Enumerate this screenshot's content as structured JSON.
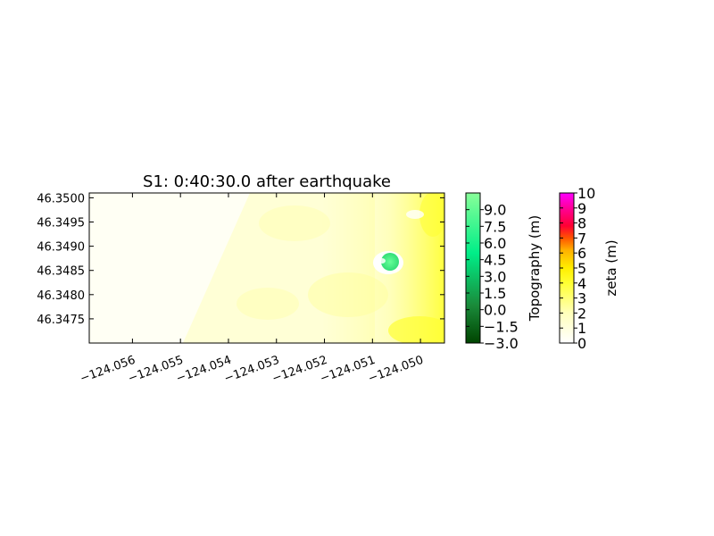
{
  "chart_data": {
    "type": "heatmap",
    "title": "S1: 0:40:30.0 after earthquake",
    "xlabel": "",
    "ylabel": "",
    "xlim": [
      -124.0569,
      -124.0495
    ],
    "ylim": [
      46.347,
      46.3501
    ],
    "x_ticks": [
      {
        "value": -124.056,
        "label": "−124.056"
      },
      {
        "value": -124.055,
        "label": "−124.055"
      },
      {
        "value": -124.054,
        "label": "−124.054"
      },
      {
        "value": -124.053,
        "label": "−124.053"
      },
      {
        "value": -124.052,
        "label": "−124.052"
      },
      {
        "value": -124.051,
        "label": "−124.051"
      },
      {
        "value": -124.05,
        "label": "−124.050"
      }
    ],
    "y_ticks": [
      {
        "value": 46.3475,
        "label": "46.3475"
      },
      {
        "value": 46.348,
        "label": "46.3480"
      },
      {
        "value": 46.3485,
        "label": "46.3485"
      },
      {
        "value": 46.349,
        "label": "46.3490"
      },
      {
        "value": 46.3495,
        "label": "46.3495"
      },
      {
        "value": 46.35,
        "label": "46.3500"
      }
    ],
    "grid": false,
    "fields": [
      {
        "name": "zeta",
        "description_visible": "water surface shading, pale to bright yellow; brightest along the east edge"
      },
      {
        "name": "Topography",
        "description_visible": "small green island near x=-124.0507, y=46.3487"
      }
    ],
    "colorbars": [
      {
        "label": "Topography (m)",
        "range": [
          -3.0,
          10.5
        ],
        "ticks": [
          {
            "value": -3.0,
            "label": "−3.0"
          },
          {
            "value": -1.5,
            "label": "−1.5"
          },
          {
            "value": 0.0,
            "label": "0.0"
          },
          {
            "value": 1.5,
            "label": "1.5"
          },
          {
            "value": 3.0,
            "label": "3.0"
          },
          {
            "value": 4.5,
            "label": "4.5"
          },
          {
            "value": 6.0,
            "label": "6.0"
          },
          {
            "value": 7.5,
            "label": "7.5"
          },
          {
            "value": 9.0,
            "label": "9.0"
          }
        ],
        "colors": [
          "#004400",
          "#1a8a3a",
          "#00ee88",
          "#88ff99"
        ]
      },
      {
        "label": "zeta (m)",
        "range": [
          0,
          10
        ],
        "ticks": [
          {
            "value": 0,
            "label": "0"
          },
          {
            "value": 1,
            "label": "1"
          },
          {
            "value": 2,
            "label": "2"
          },
          {
            "value": 3,
            "label": "3"
          },
          {
            "value": 4,
            "label": "4"
          },
          {
            "value": 5,
            "label": "5"
          },
          {
            "value": 6,
            "label": "6"
          },
          {
            "value": 7,
            "label": "7"
          },
          {
            "value": 8,
            "label": "8"
          },
          {
            "value": 9,
            "label": "9"
          },
          {
            "value": 10,
            "label": "10"
          }
        ],
        "colors": [
          "#ffffff",
          "#ffff99",
          "#ffff00",
          "#ffcc00",
          "#ff8800",
          "#ff0000",
          "#ff0099",
          "#ff00ff"
        ]
      }
    ]
  }
}
